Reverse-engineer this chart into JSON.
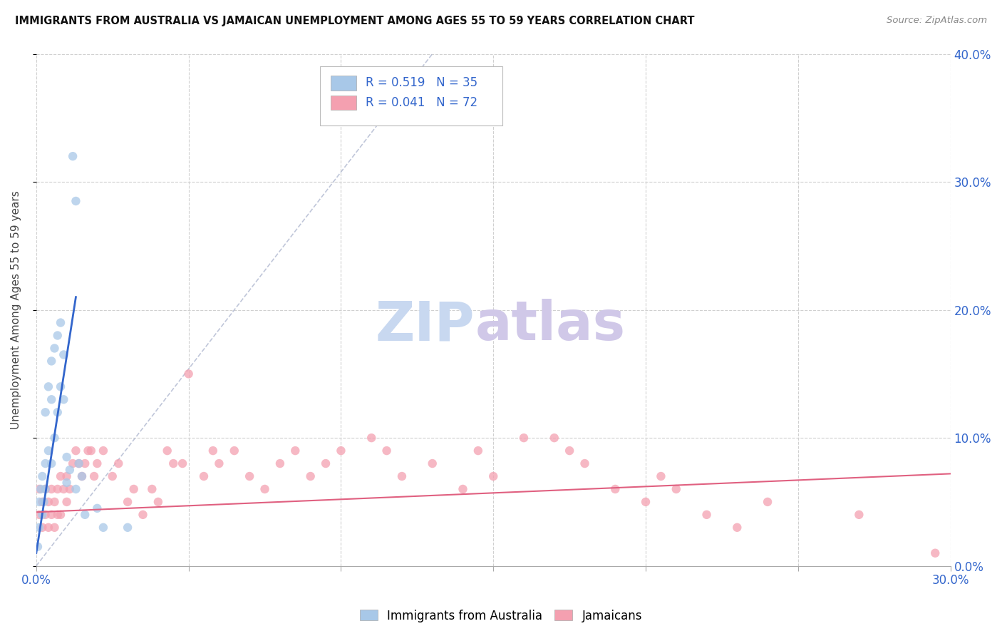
{
  "title": "IMMIGRANTS FROM AUSTRALIA VS JAMAICAN UNEMPLOYMENT AMONG AGES 55 TO 59 YEARS CORRELATION CHART",
  "source": "Source: ZipAtlas.com",
  "ylabel": "Unemployment Among Ages 55 to 59 years",
  "xlim": [
    0.0,
    0.3
  ],
  "ylim": [
    0.0,
    0.4
  ],
  "xticks": [
    0.0,
    0.05,
    0.1,
    0.15,
    0.2,
    0.25,
    0.3
  ],
  "yticks": [
    0.0,
    0.1,
    0.2,
    0.3,
    0.4
  ],
  "legend_r1": "0.519",
  "legend_n1": "35",
  "legend_r2": "0.041",
  "legend_n2": "72",
  "blue_scatter_color": "#a8c8e8",
  "blue_line_color": "#3366cc",
  "pink_scatter_color": "#f4a0b0",
  "pink_line_color": "#e06080",
  "ref_line_color": "#b0b8d0",
  "text_blue": "#3366cc",
  "watermark_zip_color": "#c8d8f0",
  "watermark_atlas_color": "#d0c8e8",
  "background": "#ffffff",
  "grid_color": "#d0d0d0",
  "aus_scatter_x": [
    0.0005,
    0.001,
    0.001,
    0.0015,
    0.002,
    0.002,
    0.0025,
    0.003,
    0.003,
    0.003,
    0.004,
    0.004,
    0.005,
    0.005,
    0.005,
    0.006,
    0.006,
    0.007,
    0.007,
    0.008,
    0.008,
    0.009,
    0.009,
    0.01,
    0.01,
    0.011,
    0.012,
    0.013,
    0.013,
    0.014,
    0.015,
    0.016,
    0.02,
    0.022,
    0.03
  ],
  "aus_scatter_y": [
    0.015,
    0.03,
    0.05,
    0.06,
    0.04,
    0.07,
    0.05,
    0.08,
    0.06,
    0.12,
    0.09,
    0.14,
    0.13,
    0.16,
    0.08,
    0.17,
    0.1,
    0.18,
    0.12,
    0.19,
    0.14,
    0.165,
    0.13,
    0.065,
    0.085,
    0.075,
    0.32,
    0.285,
    0.06,
    0.08,
    0.07,
    0.04,
    0.045,
    0.03,
    0.03
  ],
  "jam_scatter_x": [
    0.001,
    0.001,
    0.002,
    0.002,
    0.003,
    0.003,
    0.004,
    0.004,
    0.005,
    0.005,
    0.006,
    0.006,
    0.007,
    0.007,
    0.008,
    0.008,
    0.009,
    0.01,
    0.01,
    0.011,
    0.012,
    0.013,
    0.014,
    0.015,
    0.016,
    0.017,
    0.018,
    0.019,
    0.02,
    0.022,
    0.025,
    0.027,
    0.03,
    0.032,
    0.035,
    0.038,
    0.04,
    0.043,
    0.045,
    0.048,
    0.05,
    0.055,
    0.058,
    0.06,
    0.065,
    0.07,
    0.075,
    0.08,
    0.085,
    0.09,
    0.095,
    0.1,
    0.11,
    0.115,
    0.12,
    0.13,
    0.14,
    0.145,
    0.15,
    0.16,
    0.17,
    0.175,
    0.18,
    0.19,
    0.2,
    0.205,
    0.21,
    0.22,
    0.23,
    0.24,
    0.27,
    0.295
  ],
  "jam_scatter_y": [
    0.04,
    0.06,
    0.03,
    0.05,
    0.04,
    0.06,
    0.03,
    0.05,
    0.04,
    0.06,
    0.03,
    0.05,
    0.04,
    0.06,
    0.04,
    0.07,
    0.06,
    0.05,
    0.07,
    0.06,
    0.08,
    0.09,
    0.08,
    0.07,
    0.08,
    0.09,
    0.09,
    0.07,
    0.08,
    0.09,
    0.07,
    0.08,
    0.05,
    0.06,
    0.04,
    0.06,
    0.05,
    0.09,
    0.08,
    0.08,
    0.15,
    0.07,
    0.09,
    0.08,
    0.09,
    0.07,
    0.06,
    0.08,
    0.09,
    0.07,
    0.08,
    0.09,
    0.1,
    0.09,
    0.07,
    0.08,
    0.06,
    0.09,
    0.07,
    0.1,
    0.1,
    0.09,
    0.08,
    0.06,
    0.05,
    0.07,
    0.06,
    0.04,
    0.03,
    0.05,
    0.04,
    0.01
  ],
  "aus_trend_x": [
    0.0,
    0.013
  ],
  "aus_trend_y": [
    0.01,
    0.21
  ],
  "jam_trend_x": [
    0.0,
    0.3
  ],
  "jam_trend_y": [
    0.042,
    0.072
  ],
  "ref_line_x": [
    0.0,
    0.13
  ],
  "ref_line_y": [
    0.0,
    0.4
  ]
}
